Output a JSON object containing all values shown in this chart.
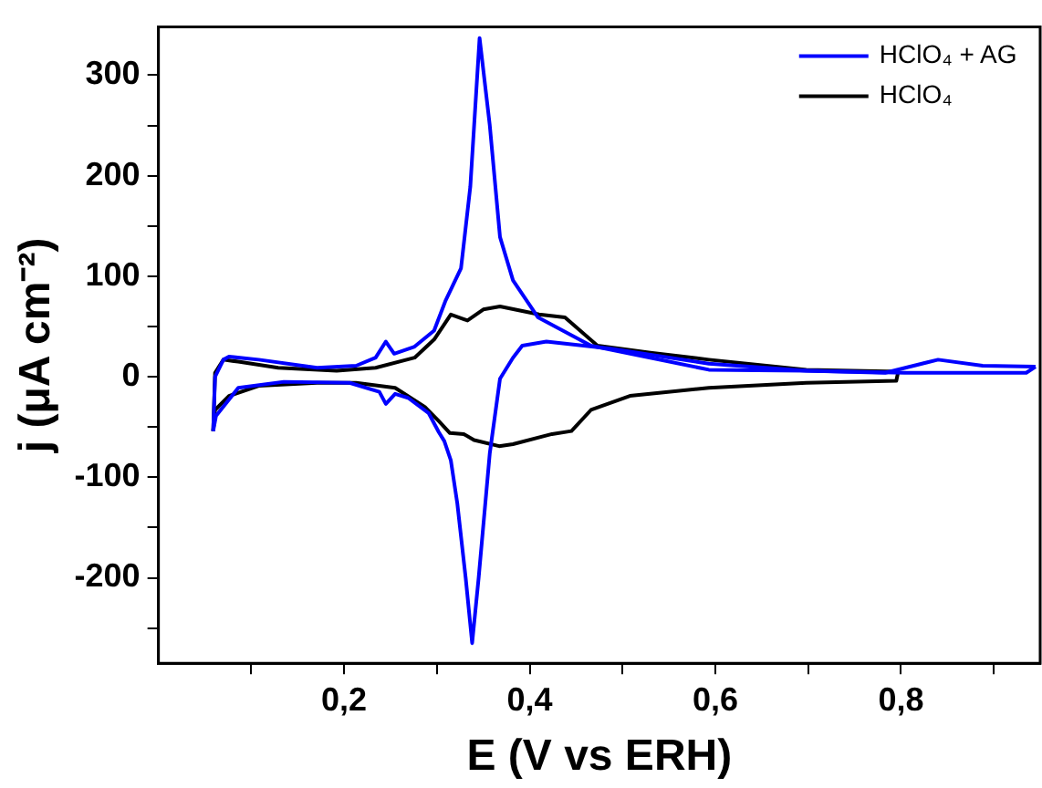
{
  "chart_data": {
    "type": "line",
    "xlabel": "E (V vs ERH)",
    "ylabel": "j (μA cm⁻²)",
    "xlim": [
      0,
      0.95
    ],
    "ylim": [
      -285,
      348
    ],
    "xticks": [
      {
        "value": 0.1,
        "label": null
      },
      {
        "value": 0.2,
        "label": "0,2"
      },
      {
        "value": 0.3,
        "label": null
      },
      {
        "value": 0.4,
        "label": "0,4"
      },
      {
        "value": 0.5,
        "label": null
      },
      {
        "value": 0.6,
        "label": "0,6"
      },
      {
        "value": 0.7,
        "label": null
      },
      {
        "value": 0.8,
        "label": "0,8"
      },
      {
        "value": 0.9,
        "label": null
      }
    ],
    "yticks": [
      {
        "value": -250,
        "label": null
      },
      -200,
      {
        "value": -150,
        "label": null
      },
      -100,
      {
        "value": -50,
        "label": null
      },
      0,
      {
        "value": 50,
        "label": null
      },
      100,
      {
        "value": 150,
        "label": null
      },
      200,
      {
        "value": 250,
        "label": null
      },
      300
    ],
    "grid": false,
    "legend": "top right",
    "marker": "none",
    "line_style": "solid",
    "series": [
      {
        "name": "HClO₄ + AG",
        "color": "#0000ff",
        "x": [
          0.059,
          0.061,
          0.07,
          0.076,
          0.108,
          0.171,
          0.213,
          0.234,
          0.245,
          0.254,
          0.276,
          0.297,
          0.309,
          0.326,
          0.336,
          0.346,
          0.357,
          0.368,
          0.382,
          0.409,
          0.466,
          0.593,
          0.698,
          0.783,
          0.84,
          0.888,
          0.945
        ],
        "values": [
          -54,
          0,
          17,
          20,
          17,
          9,
          11,
          19,
          35,
          23,
          30,
          46,
          75,
          108,
          189,
          337,
          250,
          139,
          96,
          59,
          31,
          7,
          6,
          4,
          17,
          11,
          10
        ]
      },
      {
        "color": "#0000ff",
        "x": [
          0.945,
          0.935,
          0.888,
          0.804,
          0.698,
          0.593,
          0.487,
          0.418,
          0.392,
          0.382,
          0.368,
          0.357,
          0.345,
          0.338,
          0.331,
          0.322,
          0.315,
          0.308,
          0.302,
          0.291,
          0.269,
          0.255,
          0.245,
          0.238,
          0.206,
          0.135,
          0.086,
          0.062,
          0.059
        ],
        "values": [
          10,
          4,
          4,
          4,
          6,
          13,
          28,
          35,
          31,
          19,
          -2,
          -76,
          -200,
          -265,
          -200,
          -126,
          -83,
          -64,
          -55,
          -36,
          -21,
          -17,
          -27,
          -15,
          -6,
          -5,
          -11,
          -39,
          -54
        ]
      },
      {
        "name": "HClO₄",
        "color": "#000000",
        "x": [
          0.059,
          0.061,
          0.07,
          0.086,
          0.129,
          0.192,
          0.234,
          0.276,
          0.297,
          0.315,
          0.333,
          0.35,
          0.368,
          0.41,
          0.438,
          0.473,
          0.53,
          0.593,
          0.698,
          0.797
        ],
        "values": [
          -54,
          4,
          17,
          15,
          9,
          6,
          9,
          19,
          37,
          62,
          56,
          67,
          70,
          62,
          59,
          31,
          24,
          17,
          7,
          5
        ]
      },
      {
        "color": "#000000",
        "x": [
          0.797,
          0.795,
          0.698,
          0.593,
          0.508,
          0.466,
          0.445,
          0.424,
          0.382,
          0.367,
          0.34,
          0.329,
          0.314,
          0.302,
          0.287,
          0.255,
          0.213,
          0.171,
          0.108,
          0.076,
          0.061,
          0.059
        ],
        "values": [
          5,
          -4,
          -6,
          -11,
          -19,
          -33,
          -54,
          -57,
          -67,
          -69,
          -63,
          -57,
          -56,
          -44,
          -30,
          -11,
          -6,
          -6,
          -9,
          -19,
          -33,
          -54
        ]
      }
    ]
  }
}
